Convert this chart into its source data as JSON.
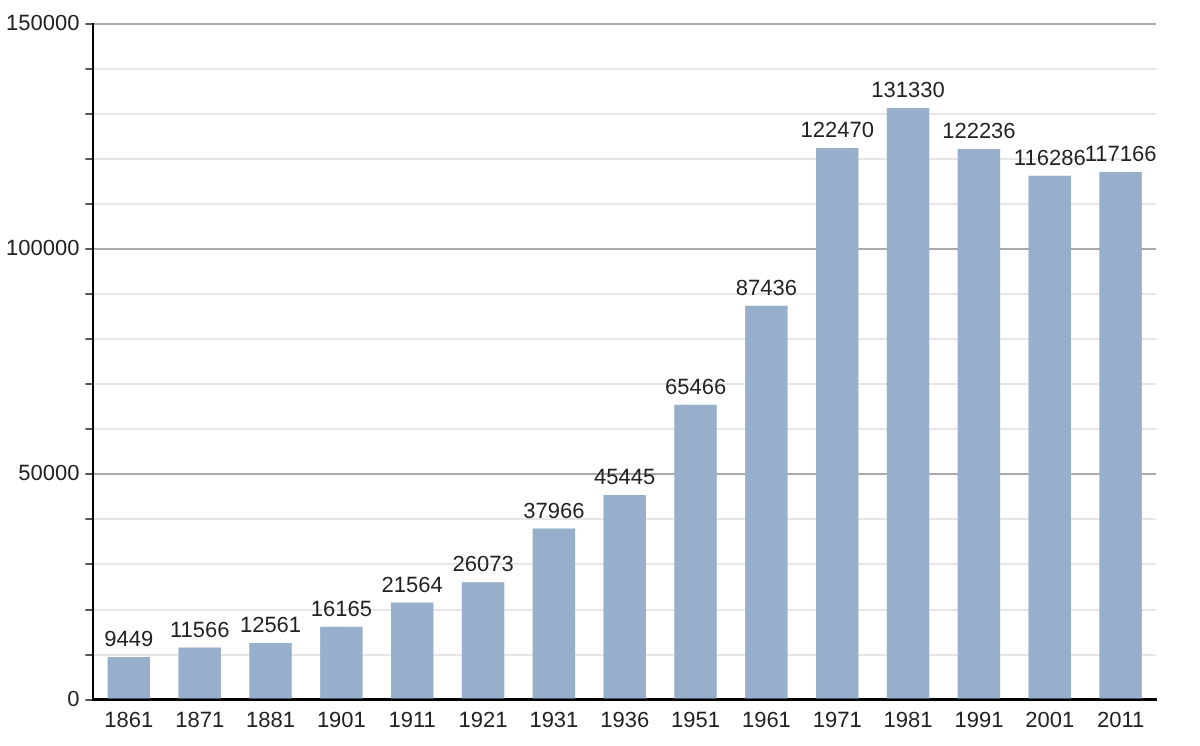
{
  "chart_data": {
    "type": "bar",
    "categories": [
      "1861",
      "1871",
      "1881",
      "1901",
      "1911",
      "1921",
      "1931",
      "1936",
      "1951",
      "1961",
      "1971",
      "1981",
      "1991",
      "2001",
      "2011"
    ],
    "values": [
      9449,
      11566,
      12561,
      16165,
      21564,
      26073,
      37966,
      45445,
      65466,
      87436,
      122470,
      131330,
      122236,
      116286,
      117166
    ],
    "color": "#97afcb",
    "ylim": [
      0,
      150000
    ],
    "yticks": [
      0,
      {
        "value": 10000,
        "label": null
      },
      {
        "value": 20000,
        "label": null
      },
      {
        "value": 30000,
        "label": null
      },
      {
        "value": 40000,
        "label": null
      },
      50000,
      {
        "value": 60000,
        "label": null
      },
      {
        "value": 70000,
        "label": null
      },
      {
        "value": 80000,
        "label": null
      },
      {
        "value": 90000,
        "label": null
      },
      100000,
      {
        "value": 110000,
        "label": null
      },
      {
        "value": 120000,
        "label": null
      },
      {
        "value": 130000,
        "label": null
      },
      {
        "value": 140000,
        "label": null
      },
      150000
    ],
    "grid": true,
    "data_labels": true
  }
}
